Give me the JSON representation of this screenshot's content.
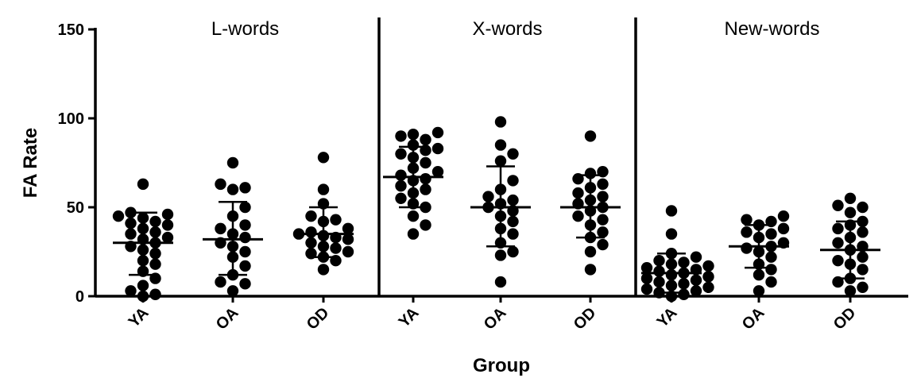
{
  "chart_data": {
    "type": "scatter",
    "ylabel": "FA Rate",
    "xlabel": "Group",
    "ylim": [
      0,
      150
    ],
    "yticks": [
      "0",
      "50",
      "100",
      "150"
    ],
    "panels": [
      {
        "label": "L-words",
        "groups": [
          {
            "name": "YA",
            "mean": 30,
            "sd_low": 12,
            "sd_high": 47,
            "values": [
              63,
              47,
              46,
              45,
              44,
              42,
              41,
              40,
              38,
              36,
              35,
              33,
              32,
              30,
              28,
              26,
              24,
              20,
              18,
              14,
              10,
              6,
              3,
              1,
              0
            ]
          },
          {
            "name": "OA",
            "mean": 32,
            "sd_low": 12,
            "sd_high": 53,
            "values": [
              75,
              63,
              61,
              60,
              50,
              45,
              40,
              38,
              35,
              33,
              30,
              28,
              25,
              22,
              17,
              12,
              8,
              7,
              3
            ]
          },
          {
            "name": "OD",
            "mean": 35,
            "sd_low": 22,
            "sd_high": 50,
            "values": [
              78,
              60,
              52,
              45,
              43,
              42,
              38,
              36,
              35,
              34,
              33,
              32,
              30,
              28,
              27,
              25,
              24,
              22,
              20,
              15
            ]
          }
        ]
      },
      {
        "label": "X-words",
        "groups": [
          {
            "name": "YA",
            "mean": 67,
            "sd_low": 50,
            "sd_high": 84,
            "values": [
              92,
              91,
              90,
              88,
              85,
              83,
              82,
              80,
              78,
              75,
              72,
              70,
              68,
              66,
              65,
              62,
              60,
              58,
              55,
              52,
              50,
              45,
              40,
              35
            ]
          },
          {
            "name": "OA",
            "mean": 50,
            "sd_low": 28,
            "sd_high": 73,
            "values": [
              98,
              85,
              80,
              76,
              65,
              60,
              56,
              54,
              52,
              50,
              48,
              45,
              42,
              38,
              35,
              30,
              25,
              23,
              8
            ]
          },
          {
            "name": "OD",
            "mean": 50,
            "sd_low": 33,
            "sd_high": 68,
            "values": [
              90,
              70,
              69,
              66,
              63,
              61,
              58,
              56,
              54,
              52,
              50,
              48,
              45,
              43,
              40,
              36,
              33,
              29,
              25,
              15
            ]
          }
        ]
      },
      {
        "label": "New-words",
        "groups": [
          {
            "name": "YA",
            "mean": 13,
            "sd_low": 2,
            "sd_high": 24,
            "values": [
              48,
              35,
              24,
              22,
              20,
              19,
              18,
              17,
              16,
              15,
              14,
              13,
              12,
              11,
              10,
              9,
              8,
              7,
              6,
              5,
              4,
              3,
              2,
              1,
              0
            ]
          },
          {
            "name": "OA",
            "mean": 28,
            "sd_low": 16,
            "sd_high": 40,
            "values": [
              45,
              43,
              42,
              40,
              38,
              36,
              35,
              33,
              30,
              28,
              27,
              25,
              22,
              18,
              15,
              12,
              8,
              3
            ]
          },
          {
            "name": "OD",
            "mean": 26,
            "sd_low": 10,
            "sd_high": 42,
            "values": [
              55,
              51,
              50,
              47,
              42,
              40,
              38,
              36,
              33,
              30,
              28,
              26,
              22,
              20,
              18,
              15,
              10,
              8,
              5,
              3
            ]
          }
        ]
      }
    ],
    "grid": false,
    "legend": "none"
  }
}
